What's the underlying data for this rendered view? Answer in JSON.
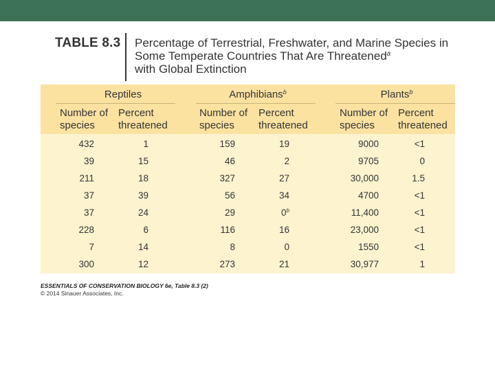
{
  "colors": {
    "top_bar": "#3d7257",
    "header_bg": "#fbe2a1",
    "body_bg": "#fdf3cf",
    "text": "#333333"
  },
  "table": {
    "label": "TABLE 8.3",
    "title_main": "Percentage of Terrestrial, Freshwater, and Marine Species in Some Temperate Countries That Are Threatened",
    "title_sup": "a",
    "title_end": "with Global Extinction",
    "groups": [
      {
        "name": "Reptiles",
        "sup": ""
      },
      {
        "name": "Amphibians",
        "sup": "b"
      },
      {
        "name": "Plants",
        "sup": "b"
      }
    ],
    "subheaders": {
      "number_line1": "Number of",
      "number_line2": "species",
      "percent_line1": "Percent",
      "percent_line2": "threatened"
    },
    "rows": [
      [
        {
          "v": "432"
        },
        {
          "v": "1"
        },
        {
          "v": "159"
        },
        {
          "v": "19"
        },
        {
          "v": "9000"
        },
        {
          "v": "<1"
        }
      ],
      [
        {
          "v": "39"
        },
        {
          "v": "15"
        },
        {
          "v": "46"
        },
        {
          "v": "2"
        },
        {
          "v": "9705"
        },
        {
          "v": "0"
        }
      ],
      [
        {
          "v": "211"
        },
        {
          "v": "18"
        },
        {
          "v": "327"
        },
        {
          "v": "27"
        },
        {
          "v": "30,000"
        },
        {
          "v": "1.5"
        }
      ],
      [
        {
          "v": "37"
        },
        {
          "v": "39"
        },
        {
          "v": "56"
        },
        {
          "v": "34"
        },
        {
          "v": "4700"
        },
        {
          "v": "<1"
        }
      ],
      [
        {
          "v": "37"
        },
        {
          "v": "24"
        },
        {
          "v": "29"
        },
        {
          "v": "0",
          "sup": "b"
        },
        {
          "v": "11,400"
        },
        {
          "v": "<1"
        }
      ],
      [
        {
          "v": "228"
        },
        {
          "v": "6"
        },
        {
          "v": "116"
        },
        {
          "v": "16"
        },
        {
          "v": "23,000"
        },
        {
          "v": "<1"
        }
      ],
      [
        {
          "v": "7"
        },
        {
          "v": "14"
        },
        {
          "v": "8"
        },
        {
          "v": "0"
        },
        {
          "v": "1550"
        },
        {
          "v": "<1"
        }
      ],
      [
        {
          "v": "300"
        },
        {
          "v": "12"
        },
        {
          "v": "273"
        },
        {
          "v": "21"
        },
        {
          "v": "30,977"
        },
        {
          "v": "1"
        }
      ]
    ]
  },
  "footer": {
    "source": "ESSENTIALS OF CONSERVATION BIOLOGY 6e, Table 8.3 (2)",
    "copyright": "© 2014 Sinauer Associates, Inc."
  }
}
